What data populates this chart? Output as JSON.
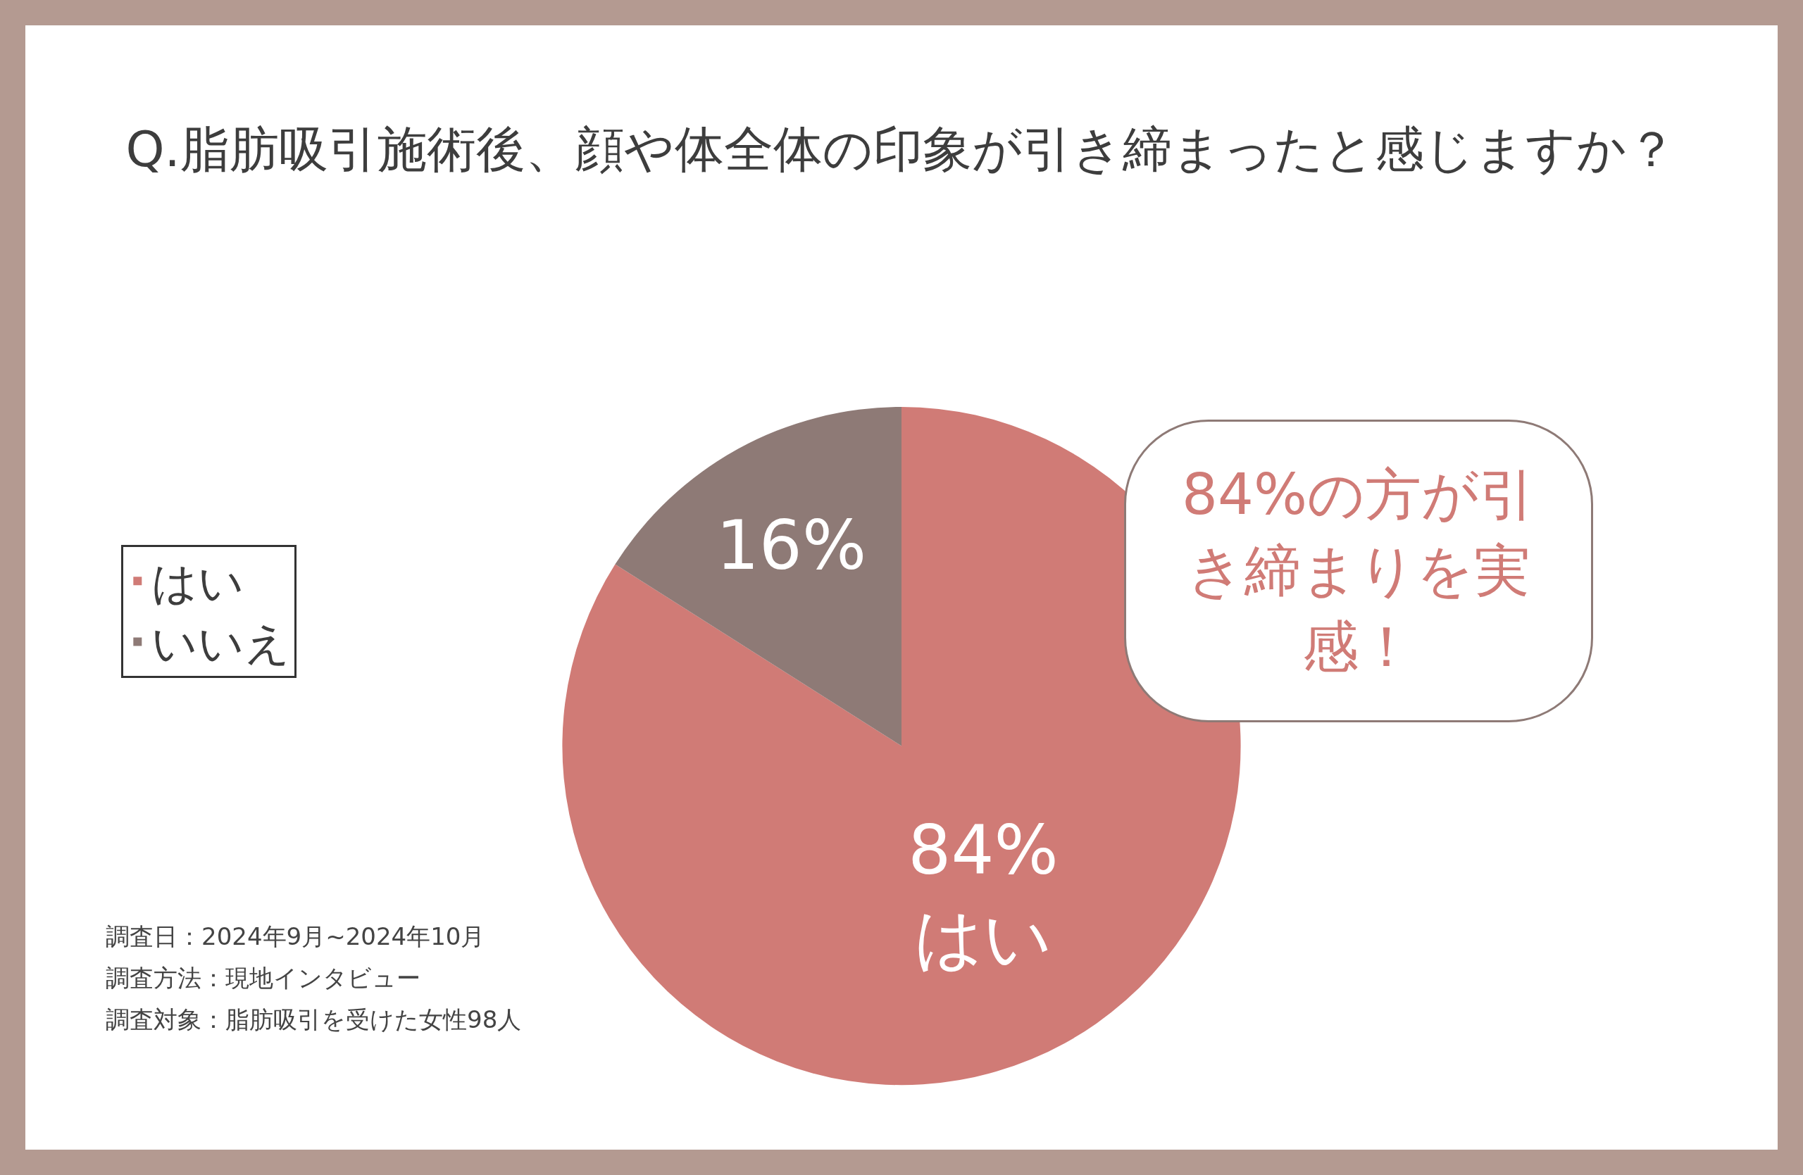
{
  "chart_data": {
    "type": "pie",
    "title": "Q.脂肪吸引施術後、顔や体全体の印象が引き締まったと感じますか？",
    "categories": [
      "はい",
      "いいえ"
    ],
    "values": [
      84,
      16
    ],
    "colors": [
      "#d07b76",
      "#8e7a76"
    ],
    "value_labels": [
      "84%\nはい",
      "16%"
    ],
    "legend": "left",
    "annotations": [
      "84%の方が引き締まりを実感！",
      "調査日：2024年9月~2024年10月",
      "調査方法：現地インタビュー",
      "調査対象：脂肪吸引を受けた女性98人"
    ]
  }
}
